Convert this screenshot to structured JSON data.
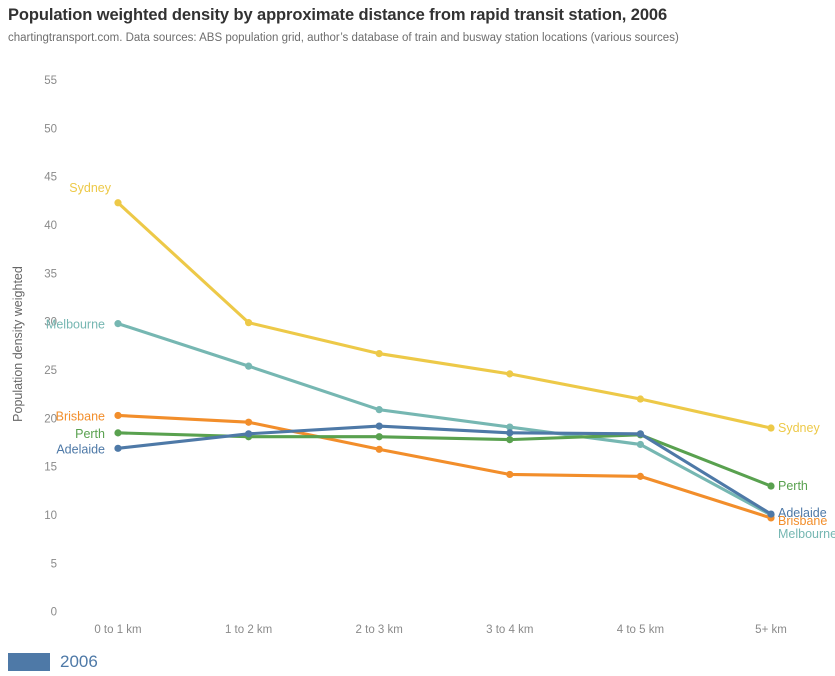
{
  "chart_data": {
    "type": "line",
    "title": "Population weighted density by approximate distance from rapid transit station, 2006",
    "subtitle": "chartingtransport.com. Data sources: ABS population grid, author’s database of train and busway station locations (various sources)",
    "ylabel": "Population density weighted",
    "xlabel": "",
    "categories": [
      "0 to 1 km",
      "1 to 2 km",
      "2 to 3 km",
      "3 to 4 km",
      "4 to 5 km",
      "5+ km"
    ],
    "ylim": [
      0,
      55
    ],
    "ytick_step": 5,
    "grid": false,
    "legend_position": "bottom-left",
    "series": [
      {
        "name": "Sydney",
        "color": "#EDC948",
        "values": [
          42.3,
          29.9,
          26.7,
          24.6,
          22.0,
          19.0
        ]
      },
      {
        "name": "Melbourne",
        "color": "#76B7B2",
        "values": [
          29.8,
          25.4,
          20.9,
          19.1,
          17.3,
          10.0
        ]
      },
      {
        "name": "Brisbane",
        "color": "#F28E2B",
        "values": [
          20.3,
          19.6,
          16.8,
          14.2,
          14.0,
          9.7
        ]
      },
      {
        "name": "Perth",
        "color": "#59A14F",
        "values": [
          18.5,
          18.1,
          18.1,
          17.8,
          18.3,
          13.0
        ]
      },
      {
        "name": "Adelaide",
        "color": "#4E79A7",
        "values": [
          16.9,
          18.4,
          19.2,
          18.5,
          18.4,
          10.1
        ]
      }
    ],
    "legend": {
      "label": "2006",
      "swatch_color": "#4E79A7",
      "text_color": "#4E79A7"
    }
  }
}
